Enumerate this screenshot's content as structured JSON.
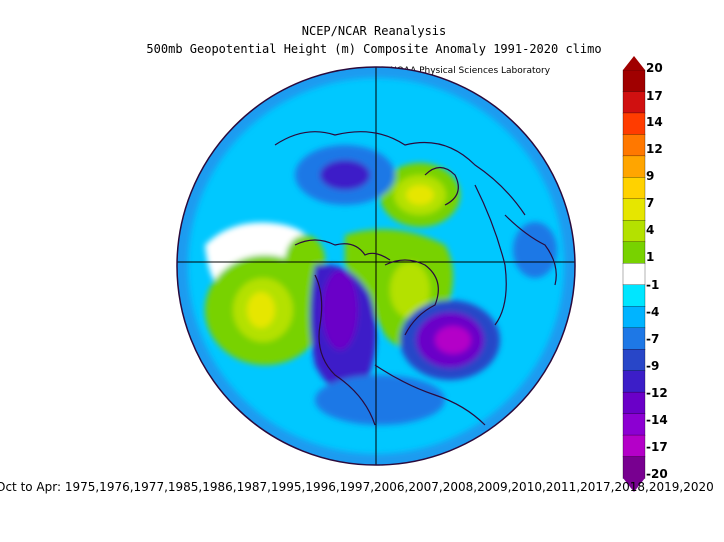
{
  "header": {
    "title": "NCEP/NCAR Reanalysis",
    "subtitle": "500mb Geopotential Height (m) Composite Anomaly 1991-2020 climo",
    "credit": "NOAA Physical Sciences Laboratory"
  },
  "colorbar": {
    "labels": [
      "20",
      "17",
      "14",
      "12",
      "9",
      "7",
      "4",
      "1",
      "-1",
      "-4",
      "-7",
      "-9",
      "-12",
      "-14",
      "-17",
      "-20"
    ],
    "colors": [
      "#a00000",
      "#d01010",
      "#ff3c00",
      "#ff7800",
      "#ffa500",
      "#ffd200",
      "#e6e600",
      "#b4e100",
      "#78d200",
      "#ffffff",
      "#00e6ff",
      "#00b4ff",
      "#1e78e6",
      "#2846c8",
      "#3c1ec8",
      "#6a00c8",
      "#8c00d2",
      "#b400c8",
      "#780090"
    ]
  },
  "footer": {
    "text": "Oct to Apr: 1975,1976,1977,1985,1986,1987,1995,1996,1997,2006,2007,2008,2009,2010,2011,2017,2018,2019,2020"
  },
  "map": {
    "projection": "north-polar-stereographic",
    "field": "500mb geopotential height anomaly",
    "ocean_base_color": "#00c8ff"
  }
}
